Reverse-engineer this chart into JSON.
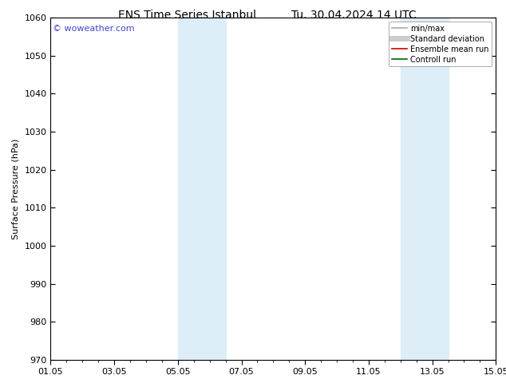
{
  "title": "ENS Time Series Istanbul",
  "title2": "Tu. 30.04.2024 14 UTC",
  "ylabel": "Surface Pressure (hPa)",
  "ylim": [
    970,
    1060
  ],
  "yticks": [
    970,
    980,
    990,
    1000,
    1010,
    1020,
    1030,
    1040,
    1050,
    1060
  ],
  "xtick_labels": [
    "01.05",
    "03.05",
    "05.05",
    "07.05",
    "09.05",
    "11.05",
    "13.05",
    "15.05"
  ],
  "xtick_positions": [
    0,
    2,
    4,
    6,
    8,
    10,
    12,
    14
  ],
  "x_total_days": 14,
  "shaded_bands": [
    {
      "x_start": 4.0,
      "x_end": 5.5
    },
    {
      "x_start": 11.0,
      "x_end": 12.5
    }
  ],
  "shaded_color": "#ddeef8",
  "background_color": "#ffffff",
  "watermark_text": "© woweather.com",
  "watermark_color": "#4444cc",
  "legend_entries": [
    {
      "label": "min/max",
      "color": "#aaaaaa",
      "lw": 1.2,
      "style": "solid"
    },
    {
      "label": "Standard deviation",
      "color": "#cccccc",
      "lw": 5,
      "style": "solid"
    },
    {
      "label": "Ensemble mean run",
      "color": "#cc0000",
      "lw": 1.2,
      "style": "solid"
    },
    {
      "label": "Controll run",
      "color": "#006600",
      "lw": 1.2,
      "style": "solid"
    }
  ],
  "title_fontsize": 10,
  "tick_fontsize": 8,
  "ylabel_fontsize": 8,
  "watermark_fontsize": 8,
  "legend_fontsize": 7
}
